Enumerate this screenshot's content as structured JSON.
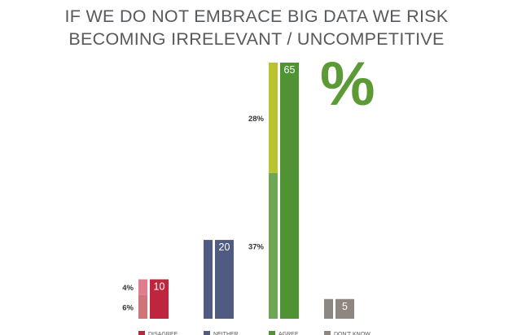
{
  "title_lines": [
    "IF WE DO NOT EMBRACE BIG DATA WE RISK",
    "BECOMING IRRELEVANT / UNCOMPETITIVE"
  ],
  "unit_mark": "%",
  "chart_data": {
    "type": "bar",
    "title": "IF WE DO NOT EMBRACE BIG DATA WE RISK BECOMING IRRELEVANT / UNCOMPETITIVE",
    "categories": [
      "DISAGREE",
      "NEITHER",
      "AGREE",
      "DON'T KNOW"
    ],
    "totals": [
      10,
      20,
      65,
      5
    ],
    "breakdown": [
      {
        "category": "DISAGREE",
        "segments": [
          {
            "label": "6%",
            "value": 6,
            "color": "#cf7479"
          },
          {
            "label": "4%",
            "value": 4,
            "color": "#e17c8c"
          }
        ]
      },
      {
        "category": "NEITHER",
        "segments": []
      },
      {
        "category": "AGREE",
        "segments": [
          {
            "label": "37%",
            "value": 37,
            "color": "#6ea653"
          },
          {
            "label": "28%",
            "value": 28,
            "color": "#b9c22f"
          }
        ]
      },
      {
        "category": "DON'T KNOW",
        "segments": []
      }
    ],
    "colors": {
      "DISAGREE": "#c0253f",
      "NEITHER": "#4f5b80",
      "AGREE": "#4f9334",
      "DON'T KNOW": "#8d8681"
    },
    "ylim": [
      0,
      65
    ]
  }
}
